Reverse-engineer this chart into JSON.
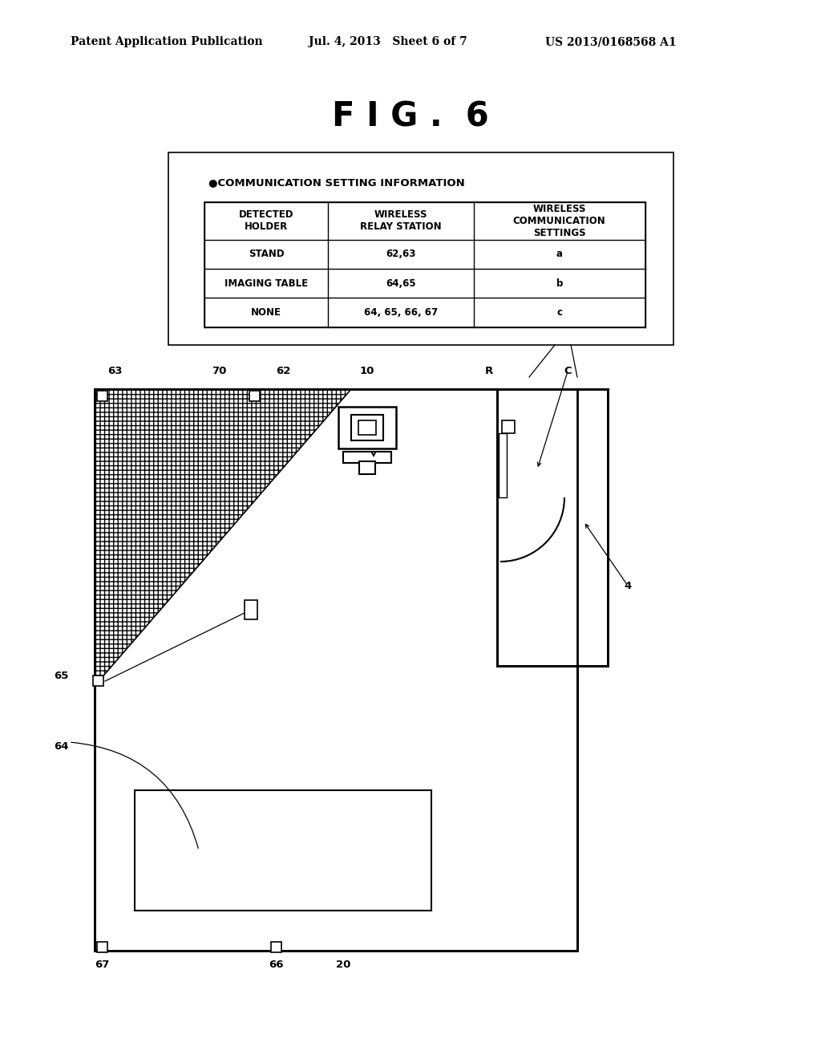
{
  "header_left": "Patent Application Publication",
  "header_mid": "Jul. 4, 2013   Sheet 6 of 7",
  "header_right": "US 2013/0168568 A1",
  "fig_title": "F I G .  6",
  "table_title": "●COMMUNICATION SETTING INFORMATION",
  "table_headers": [
    "DETECTED\nHOLDER",
    "WIRELESS\nRELAY STATION",
    "WIRELESS\nCOMMUNICATION\nSETTINGS"
  ],
  "table_rows": [
    [
      "STAND",
      "62,63",
      "a"
    ],
    [
      "IMAGING TABLE",
      "64,65",
      "b"
    ],
    [
      "NONE",
      "64, 65, 66, 67",
      "c"
    ]
  ],
  "bg_color": "#ffffff",
  "line_color": "#000000"
}
